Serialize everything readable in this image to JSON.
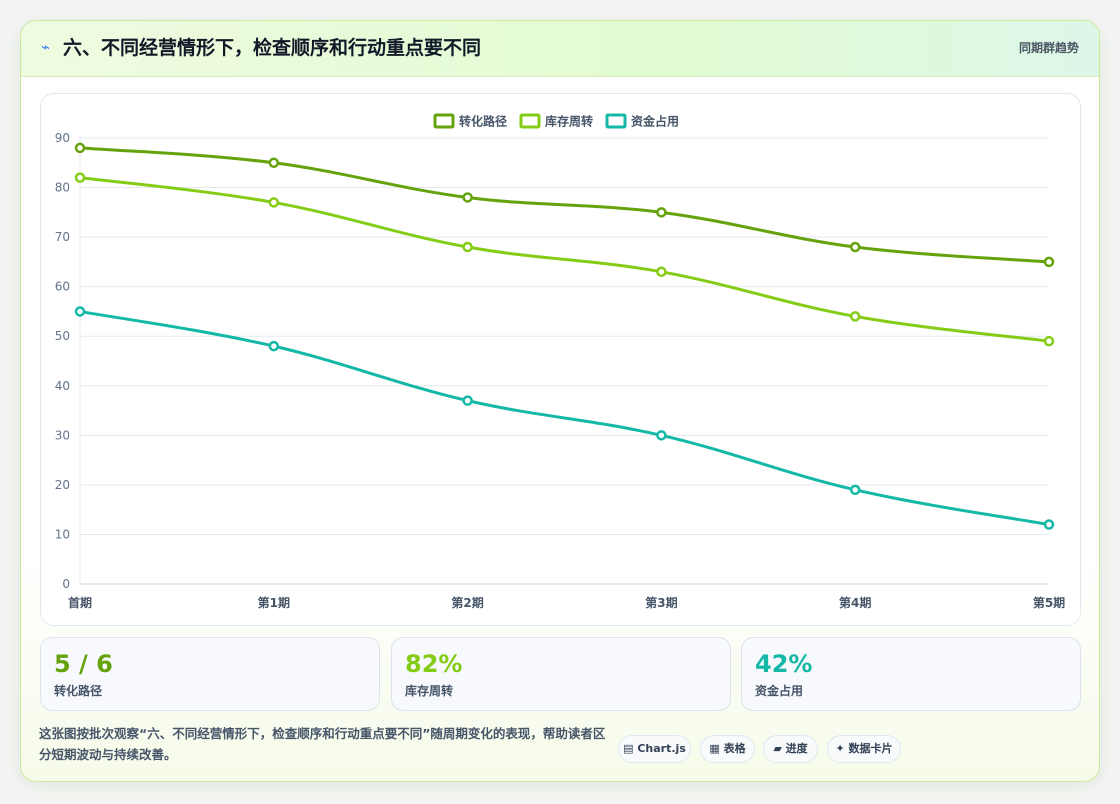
{
  "header": {
    "icon": "lightning-icon",
    "title": "六、不同经营情形下，检查顺序和行动重点要不同",
    "tag": "同期群趋势"
  },
  "chart_data": {
    "type": "line",
    "categories": [
      "首期",
      "第1期",
      "第2期",
      "第3期",
      "第4期",
      "第5期"
    ],
    "series": [
      {
        "name": "转化路径",
        "color": "#65a30d",
        "values": [
          88,
          85,
          78,
          75,
          68,
          65
        ]
      },
      {
        "name": "库存周转",
        "color": "#84cc16",
        "values": [
          82,
          77,
          68,
          63,
          54,
          49
        ]
      },
      {
        "name": "资金占用",
        "color": "#14b8a6",
        "values": [
          55,
          48,
          37,
          30,
          19,
          12
        ]
      }
    ],
    "ylim": [
      0,
      90
    ],
    "yticks": [
      0,
      10,
      20,
      30,
      40,
      50,
      60,
      70,
      80,
      90
    ],
    "grid": true,
    "legend_position": "top-center"
  },
  "stats": [
    {
      "value": "5 / 6",
      "label": "转化路径",
      "color": "#65a30d"
    },
    {
      "value": "82%",
      "label": "库存周转",
      "color": "#84cc16"
    },
    {
      "value": "42%",
      "label": "资金占用",
      "color": "#14b8a6"
    }
  ],
  "footnote": "这张图按批次观察“六、不同经营情形下，检查顺序和行动重点要不同”随周期变化的表现，帮助读者区分短期波动与持续改善。",
  "pills": [
    {
      "icon": "chart-icon",
      "glyph": "▤",
      "label": "Chart.js"
    },
    {
      "icon": "table-icon",
      "glyph": "▦",
      "label": "表格"
    },
    {
      "icon": "progress-icon",
      "glyph": "▰",
      "label": "进度"
    },
    {
      "icon": "sparkle-icon",
      "glyph": "✦",
      "label": "数据卡片"
    }
  ]
}
